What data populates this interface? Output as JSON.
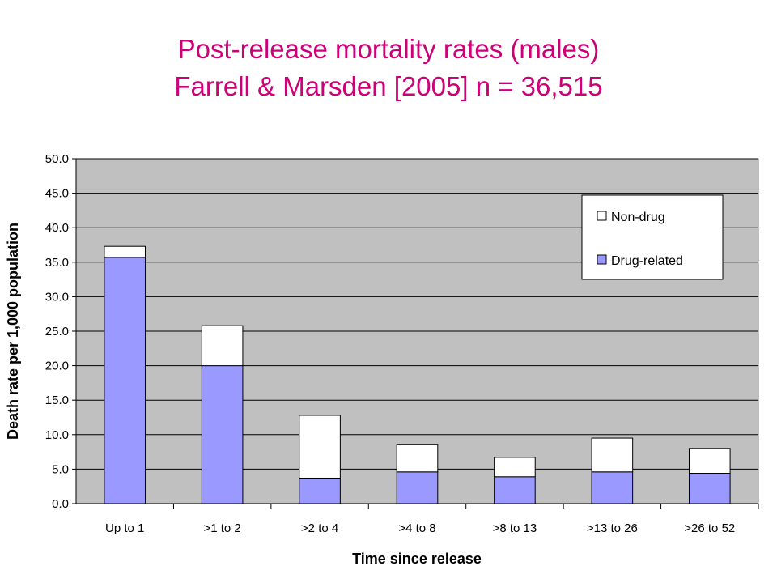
{
  "title_line1": "Post-release mortality rates (males)",
  "title_line2": "Farrell & Marsden [2005] n = 36,515",
  "chart_data": {
    "type": "bar",
    "stacked": true,
    "xlabel": "Time since release",
    "ylabel": "Death rate per 1,000 population",
    "ylim": [
      0,
      50
    ],
    "ytick_step": 5,
    "ytick_labels": [
      "0.0",
      "5.0",
      "10.0",
      "15.0",
      "20.0",
      "25.0",
      "30.0",
      "35.0",
      "40.0",
      "45.0",
      "50.0"
    ],
    "grid": true,
    "legend_position": "top-right",
    "categories": [
      "Up to 1",
      ">1 to 2",
      ">2 to 4",
      ">4 to 8",
      ">8 to 13",
      ">13 to 26",
      ">26 to 52"
    ],
    "series": [
      {
        "name": "Drug-related",
        "color": "#9999ff",
        "values": [
          35.7,
          20.0,
          3.7,
          4.6,
          3.9,
          4.6,
          4.4
        ]
      },
      {
        "name": "Non-drug",
        "color": "#ffffff",
        "values": [
          1.6,
          5.8,
          9.1,
          4.0,
          2.8,
          4.9,
          3.6
        ]
      }
    ],
    "plot_background": "#c0c0c0"
  }
}
